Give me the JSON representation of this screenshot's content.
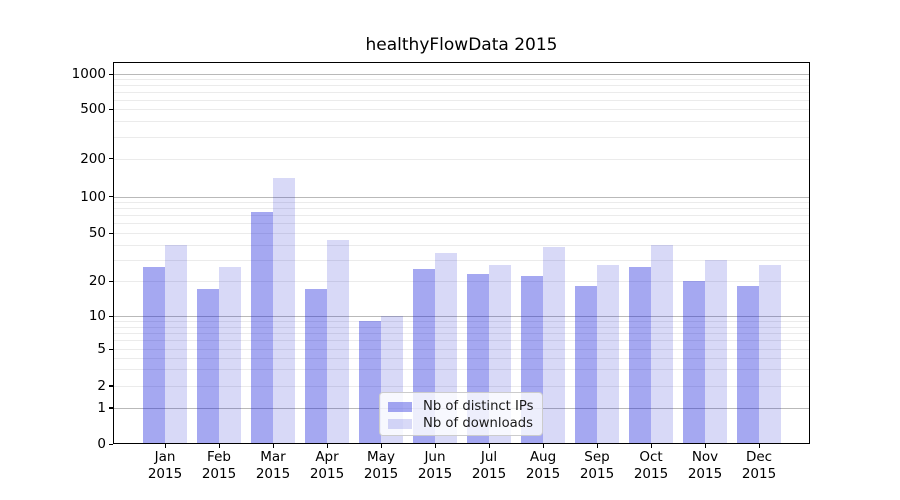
{
  "title": "healthyFlowData 2015",
  "chart_data": {
    "type": "bar",
    "title": "healthyFlowData 2015",
    "categories": [
      "Jan 2015",
      "Feb 2015",
      "Mar 2015",
      "Apr 2015",
      "May 2015",
      "Jun 2015",
      "Jul 2015",
      "Aug 2015",
      "Sep 2015",
      "Oct 2015",
      "Nov 2015",
      "Dec 2015"
    ],
    "x_months": [
      "Jan",
      "Feb",
      "Mar",
      "Apr",
      "May",
      "Jun",
      "Jul",
      "Aug",
      "Sep",
      "Oct",
      "Nov",
      "Dec"
    ],
    "x_year": "2015",
    "series": [
      {
        "name": "Nb of distinct IPs",
        "color": "rgba(11,18,216,0.37)",
        "color_hex": "#a6a9f1",
        "values": [
          26,
          17,
          75,
          17,
          9,
          25,
          23,
          22,
          18,
          26,
          20,
          18
        ]
      },
      {
        "name": "Nb of downloads",
        "color": "rgba(11,18,206,0.16)",
        "color_hex": "#d9dbf8",
        "values": [
          40,
          26,
          140,
          44,
          10,
          34,
          27,
          38,
          27,
          40,
          30,
          27
        ]
      }
    ],
    "yscale": "symlog",
    "ylim": [
      0,
      1000
    ],
    "yticks": [
      1000,
      500,
      200,
      100,
      50,
      20,
      10,
      5,
      2,
      1,
      0
    ],
    "y_major_gridlines": [
      1,
      10,
      100,
      1000
    ],
    "y_minor_gridlines": [
      2,
      3,
      4,
      5,
      6,
      7,
      8,
      9,
      20,
      30,
      40,
      50,
      60,
      70,
      80,
      90,
      200,
      300,
      400,
      500,
      600,
      700,
      800,
      900
    ],
    "grid": true,
    "legend_position": "lower center"
  },
  "legend": {
    "items": [
      {
        "label": "Nb of distinct IPs",
        "color": "rgba(11,18,216,0.37)"
      },
      {
        "label": "Nb of downloads",
        "color": "rgba(11,18,206,0.16)"
      }
    ]
  },
  "colors": {
    "bar_distinct_ips": "#a6a9f1",
    "bar_downloads": "#d9dbf8",
    "grid_major": "#b9b9b9",
    "grid_minor": "#ebebeb",
    "frame": "#000000",
    "legend_border": "#cccccc",
    "text": "#000000"
  }
}
